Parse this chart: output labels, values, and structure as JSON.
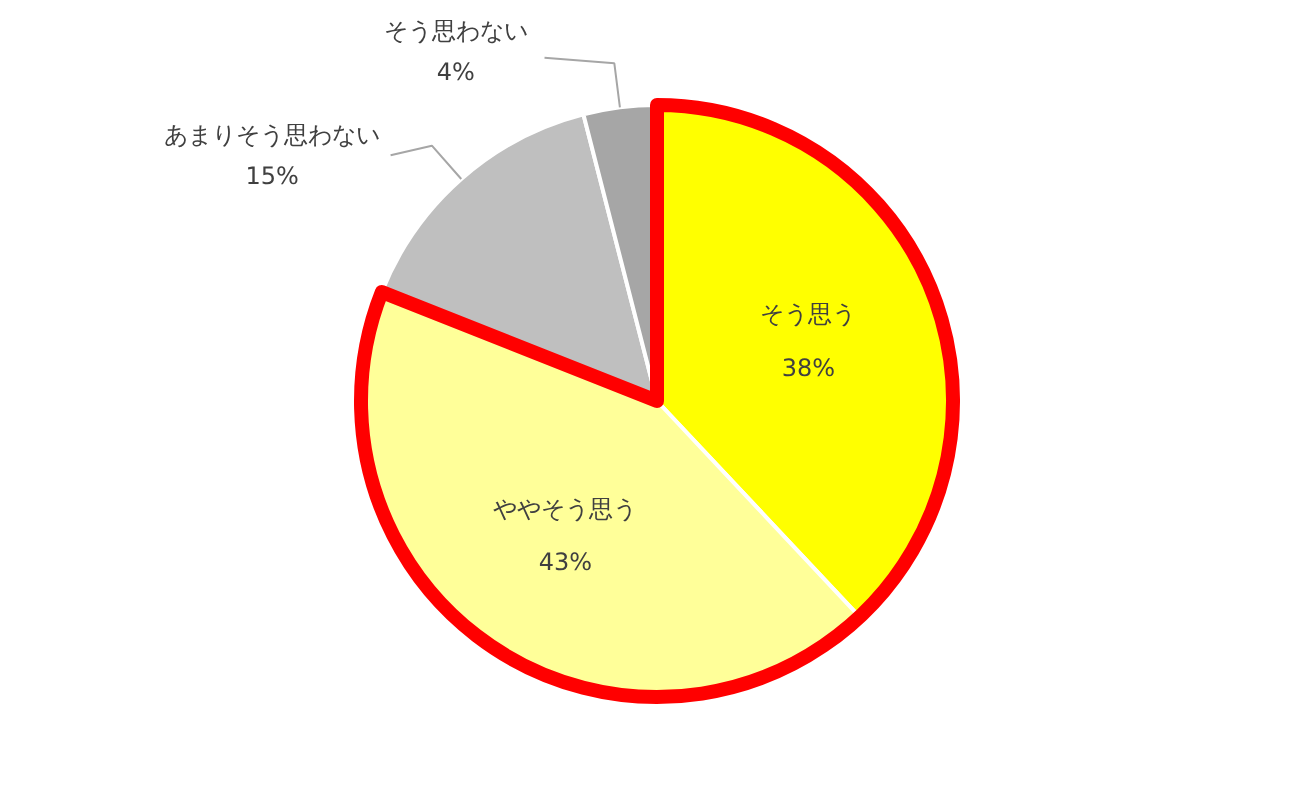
{
  "chart_data": {
    "type": "pie",
    "categories": [
      "そう思う",
      "ややそう思う",
      "あまりそう思わない",
      "そう思わない"
    ],
    "values": [
      38,
      43,
      15,
      4
    ],
    "colors": [
      "#ffff00",
      "#ffff99",
      "#bfbfbf",
      "#a6a6a6"
    ],
    "value_labels": [
      "38%",
      "43%",
      "15%",
      "4%"
    ]
  }
}
